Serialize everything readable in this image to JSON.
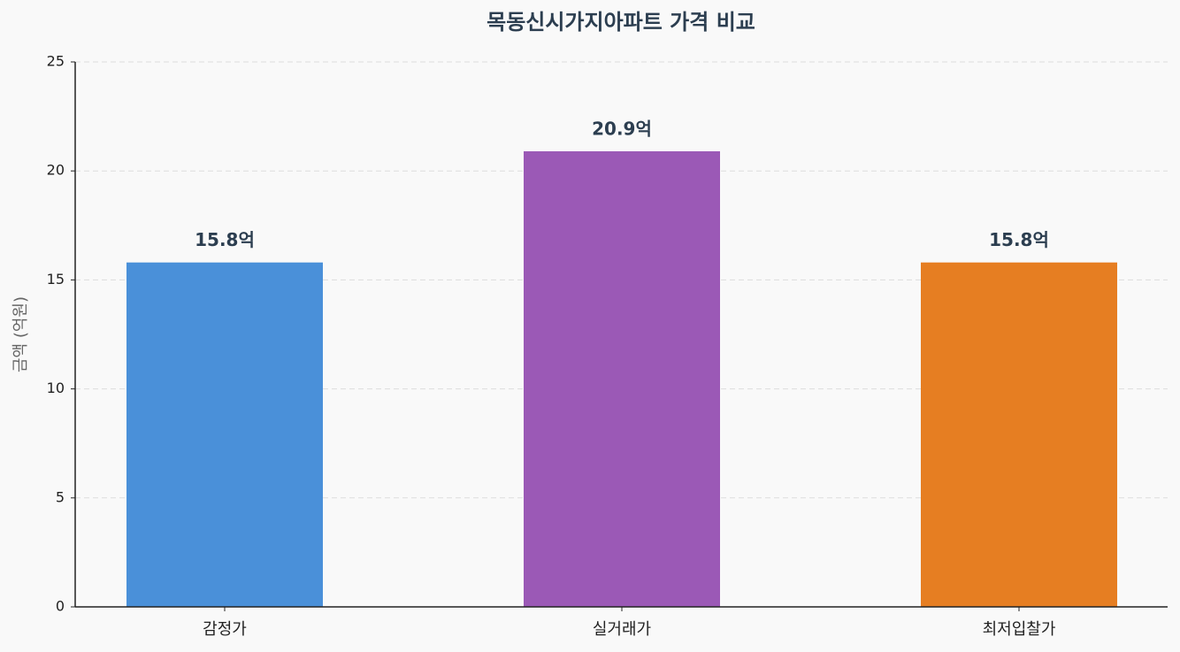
{
  "chart_data": {
    "type": "bar",
    "title": "목동신시가지아파트 가격 비교",
    "y_label": "금액 (억원)",
    "categories": [
      "감정가",
      "실거래가",
      "최저입찰가"
    ],
    "values": [
      15.8,
      20.9,
      15.8
    ],
    "value_labels": [
      "15.8억",
      "20.9억",
      "15.8억"
    ],
    "colors": [
      "#4a90d9",
      "#9b59b6",
      "#e67e22"
    ],
    "ylim": [
      0,
      25
    ],
    "yticks": [
      0,
      5,
      10,
      15,
      20,
      25
    ],
    "grid": true
  }
}
